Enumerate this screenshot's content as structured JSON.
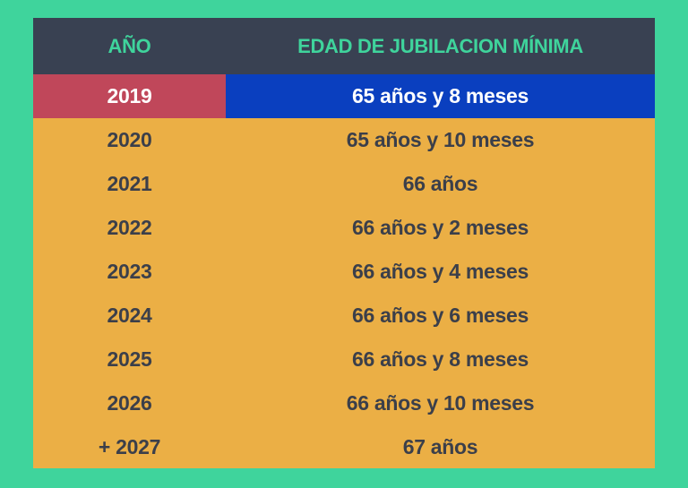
{
  "table": {
    "header": [
      "AÑO",
      "EDAD DE JUBILACION MÍNIMA"
    ],
    "rows": [
      [
        "2019",
        "65 años y 8 meses"
      ],
      [
        "2020",
        "65 años y 10 meses"
      ],
      [
        "2021",
        "66 años"
      ],
      [
        "2022",
        "66 años y 2 meses"
      ],
      [
        "2023",
        "66 años y 4 meses"
      ],
      [
        "2024",
        "66 años y 6 meses"
      ],
      [
        "2025",
        "66 años y 8 meses"
      ],
      [
        "2026",
        "66 años y 10 meses"
      ],
      [
        "+ 2027",
        "67 años"
      ]
    ]
  }
}
